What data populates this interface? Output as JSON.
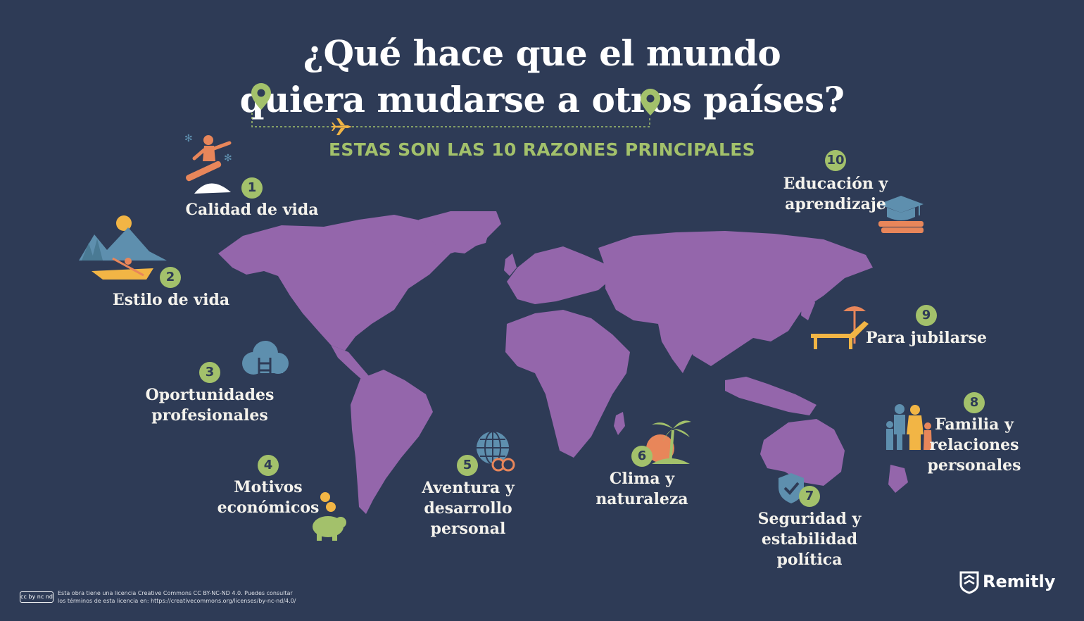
{
  "title": {
    "line1": "¿Qué hace que el mundo",
    "line2": "quiera mudarse a otros países?"
  },
  "subtitle": "ESTAS SON LAS 10  RAZONES PRINCIPALES",
  "reasons": [
    {
      "number": "1",
      "label": "Calidad de vida",
      "icon": "snowboarder-icon"
    },
    {
      "number": "2",
      "label": "Estilo de vida",
      "icon": "kayak-mountains-icon"
    },
    {
      "number": "3",
      "label": "Oportunidades\nprofesionales",
      "icon": "cloud-ladder-icon"
    },
    {
      "number": "4",
      "label": "Motivos\neconómicos",
      "icon": "piggy-bank-icon"
    },
    {
      "number": "5",
      "label": "Aventura y\ndesarrollo\npersonal",
      "icon": "globe-binoculars-icon"
    },
    {
      "number": "6",
      "label": "Clima y\nnaturaleza",
      "icon": "palm-tree-sun-icon"
    },
    {
      "number": "7",
      "label": "Seguridad y\nestabilidad\npolítica",
      "icon": "shield-check-icon"
    },
    {
      "number": "8",
      "label": "Familia y\nrelaciones\npersonales",
      "icon": "family-icon"
    },
    {
      "number": "9",
      "label": "Para jubilarse",
      "icon": "beach-lounger-icon"
    },
    {
      "number": "10",
      "label": "Educación y\naprendizaje",
      "icon": "graduation-cap-books-icon"
    }
  ],
  "footer": {
    "license_badge": "cc by nc nd",
    "license_text": "Esta obra tiene una licencia Creative Commons CC BY-NC-ND 4.0. Puedes consultar\nlos términos de esta licencia en: https://creativecommons.org/licenses/by-nc-nd/4.0/"
  },
  "brand": "Remitly",
  "colors": {
    "background": "#2e3b56",
    "map": "#9466ab",
    "accent_green": "#a3c16b",
    "orange": "#e8865a",
    "yellow": "#f2b545",
    "blue": "#5e8fae",
    "text": "#f4f2ec"
  }
}
